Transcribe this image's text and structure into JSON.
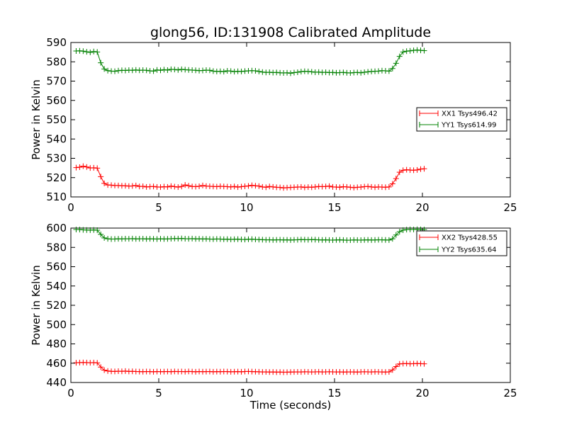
{
  "figure": {
    "title": "glong56, ID:131908 Calibrated Amplitude"
  },
  "colors": {
    "xx": "#ff0000",
    "yy": "#008000",
    "axes": "#000000",
    "background": "#ffffff"
  },
  "chart_data": [
    {
      "type": "line",
      "title": "glong56, ID:131908 Calibrated Amplitude",
      "xlabel": "",
      "ylabel": "Power in Kelvin",
      "xlim": [
        0,
        25
      ],
      "ylim": [
        510,
        590
      ],
      "xticks": [
        0,
        5,
        10,
        15,
        20,
        25
      ],
      "yticks": [
        510,
        520,
        530,
        540,
        550,
        560,
        570,
        580,
        590
      ],
      "grid": false,
      "legend_position": "center-right",
      "marker": "+",
      "x": [
        0.3,
        0.5,
        0.7,
        0.9,
        1.1,
        1.3,
        1.5,
        1.7,
        1.9,
        2.1,
        2.3,
        2.5,
        2.7,
        2.9,
        3.1,
        3.3,
        3.5,
        3.7,
        3.9,
        4.1,
        4.3,
        4.5,
        4.7,
        4.9,
        5.1,
        5.3,
        5.5,
        5.7,
        5.9,
        6.1,
        6.3,
        6.5,
        6.7,
        6.9,
        7.1,
        7.3,
        7.5,
        7.7,
        7.9,
        8.1,
        8.3,
        8.5,
        8.7,
        8.9,
        9.1,
        9.3,
        9.5,
        9.7,
        9.9,
        10.1,
        10.3,
        10.5,
        10.7,
        10.9,
        11.1,
        11.3,
        11.5,
        11.7,
        11.9,
        12.1,
        12.3,
        12.5,
        12.7,
        12.9,
        13.1,
        13.3,
        13.5,
        13.7,
        13.9,
        14.1,
        14.3,
        14.5,
        14.7,
        14.9,
        15.1,
        15.3,
        15.5,
        15.7,
        15.9,
        16.1,
        16.3,
        16.5,
        16.7,
        16.9,
        17.1,
        17.3,
        17.5,
        17.7,
        17.9,
        18.1,
        18.3,
        18.5,
        18.7,
        18.9,
        19.1,
        19.3,
        19.5,
        19.7,
        19.9,
        20.1
      ],
      "series": [
        {
          "name": "XX1 Tsys496.42",
          "color": "#ff0000",
          "values": [
            525.2,
            525.4,
            525.9,
            525.5,
            525.0,
            525.1,
            524.9,
            520.5,
            517.0,
            516.2,
            516.1,
            515.9,
            515.9,
            515.8,
            515.8,
            515.6,
            515.7,
            515.9,
            515.4,
            515.5,
            515.2,
            515.3,
            515.4,
            515.2,
            515.1,
            515.3,
            515.2,
            515.6,
            515.3,
            515.1,
            515.4,
            516.2,
            515.8,
            515.4,
            515.3,
            515.5,
            515.9,
            515.6,
            515.5,
            515.4,
            515.3,
            515.5,
            515.4,
            515.3,
            515.2,
            515.4,
            515.1,
            515.3,
            515.5,
            515.7,
            516.0,
            515.8,
            515.6,
            515.2,
            515.0,
            515.4,
            515.2,
            515.0,
            514.9,
            514.7,
            514.8,
            514.9,
            515.0,
            515.1,
            515.2,
            514.9,
            515.1,
            515.0,
            515.2,
            515.4,
            515.3,
            515.4,
            515.6,
            515.2,
            515.1,
            515.0,
            515.3,
            515.2,
            515.0,
            514.8,
            515.0,
            515.1,
            515.3,
            515.4,
            515.2,
            515.0,
            515.2,
            515.1,
            515.0,
            515.2,
            516.8,
            519.5,
            522.8,
            523.8,
            524.1,
            523.9,
            523.8,
            524.0,
            524.4,
            524.6
          ]
        },
        {
          "name": "YY1 Tsys614.99",
          "color": "#008000",
          "values": [
            585.6,
            585.7,
            585.5,
            585.2,
            584.9,
            585.3,
            585.1,
            579.5,
            576.3,
            575.4,
            575.2,
            575.1,
            575.4,
            575.6,
            575.5,
            575.7,
            575.6,
            575.8,
            575.6,
            575.7,
            575.6,
            575.3,
            575.2,
            575.8,
            575.6,
            575.9,
            575.7,
            576.1,
            576.0,
            575.8,
            576.1,
            575.9,
            575.8,
            575.7,
            575.6,
            575.4,
            575.5,
            575.7,
            575.6,
            575.2,
            575.0,
            575.1,
            574.9,
            575.3,
            575.2,
            574.9,
            575.1,
            575.0,
            575.2,
            575.3,
            575.4,
            575.3,
            575.0,
            574.7,
            574.5,
            574.6,
            574.4,
            574.5,
            574.3,
            574.2,
            574.3,
            574.1,
            574.4,
            574.6,
            574.9,
            575.1,
            575.0,
            574.8,
            574.6,
            574.7,
            574.5,
            574.6,
            574.4,
            574.5,
            574.3,
            574.4,
            574.5,
            574.3,
            574.2,
            574.4,
            574.5,
            574.3,
            574.6,
            574.8,
            575.0,
            575.1,
            575.2,
            575.4,
            575.3,
            575.2,
            576.5,
            579.2,
            582.8,
            585.1,
            585.5,
            585.7,
            585.9,
            586.1,
            585.9,
            585.8
          ]
        }
      ]
    },
    {
      "type": "line",
      "title": "",
      "xlabel": "Time (seconds)",
      "ylabel": "Power in Kelvin",
      "xlim": [
        0,
        25
      ],
      "ylim": [
        440,
        600
      ],
      "xticks": [
        0,
        5,
        10,
        15,
        20,
        25
      ],
      "yticks": [
        440,
        460,
        480,
        500,
        520,
        540,
        560,
        580,
        600
      ],
      "grid": false,
      "legend_position": "top-right",
      "marker": "+",
      "x": [
        0.3,
        0.5,
        0.7,
        0.9,
        1.1,
        1.3,
        1.5,
        1.7,
        1.9,
        2.1,
        2.3,
        2.5,
        2.7,
        2.9,
        3.1,
        3.3,
        3.5,
        3.7,
        3.9,
        4.1,
        4.3,
        4.5,
        4.7,
        4.9,
        5.1,
        5.3,
        5.5,
        5.7,
        5.9,
        6.1,
        6.3,
        6.5,
        6.7,
        6.9,
        7.1,
        7.3,
        7.5,
        7.7,
        7.9,
        8.1,
        8.3,
        8.5,
        8.7,
        8.9,
        9.1,
        9.3,
        9.5,
        9.7,
        9.9,
        10.1,
        10.3,
        10.5,
        10.7,
        10.9,
        11.1,
        11.3,
        11.5,
        11.7,
        11.9,
        12.1,
        12.3,
        12.5,
        12.7,
        12.9,
        13.1,
        13.3,
        13.5,
        13.7,
        13.9,
        14.1,
        14.3,
        14.5,
        14.7,
        14.9,
        15.1,
        15.3,
        15.5,
        15.7,
        15.9,
        16.1,
        16.3,
        16.5,
        16.7,
        16.9,
        17.1,
        17.3,
        17.5,
        17.7,
        17.9,
        18.1,
        18.3,
        18.5,
        18.7,
        18.9,
        19.1,
        19.3,
        19.5,
        19.7,
        19.9,
        20.1
      ],
      "series": [
        {
          "name": "XX2 Tsys428.55",
          "color": "#ff0000",
          "values": [
            460.5,
            460.6,
            460.7,
            460.6,
            460.5,
            460.6,
            460.4,
            456.0,
            452.8,
            451.9,
            451.6,
            451.5,
            451.7,
            451.6,
            451.8,
            451.5,
            451.6,
            451.4,
            451.3,
            451.2,
            451.4,
            451.3,
            451.1,
            451.4,
            451.2,
            451.3,
            451.4,
            451.2,
            451.5,
            451.3,
            451.4,
            451.2,
            451.5,
            451.3,
            451.1,
            451.4,
            451.2,
            451.3,
            451.4,
            451.1,
            451.3,
            451.2,
            451.4,
            451.3,
            451.1,
            451.2,
            451.3,
            451.1,
            451.4,
            451.5,
            451.3,
            451.2,
            451.1,
            450.9,
            451.0,
            450.8,
            450.9,
            450.7,
            450.8,
            450.6,
            450.7,
            450.8,
            450.9,
            451.0,
            450.9,
            451.1,
            451.0,
            450.9,
            451.0,
            451.1,
            450.9,
            451.0,
            451.1,
            451.0,
            450.9,
            451.0,
            450.8,
            450.9,
            451.0,
            450.9,
            450.8,
            451.0,
            451.1,
            451.0,
            450.9,
            451.1,
            451.0,
            450.9,
            450.8,
            451.0,
            453.0,
            456.5,
            459.3,
            459.5,
            459.6,
            459.4,
            459.5,
            459.6,
            459.5,
            459.4
          ]
        },
        {
          "name": "YY2 Tsys635.64",
          "color": "#008000",
          "values": [
            598.5,
            598.4,
            598.2,
            598.0,
            597.9,
            598.1,
            597.8,
            593.5,
            589.8,
            588.9,
            588.6,
            588.7,
            588.9,
            588.8,
            589.0,
            588.9,
            589.1,
            588.8,
            588.9,
            589.0,
            588.7,
            588.9,
            588.8,
            588.6,
            588.9,
            588.7,
            588.8,
            589.0,
            589.2,
            589.1,
            589.3,
            589.0,
            588.9,
            589.1,
            588.8,
            588.9,
            588.7,
            588.8,
            588.6,
            588.5,
            588.7,
            588.6,
            588.4,
            588.5,
            588.3,
            588.4,
            588.5,
            588.3,
            588.2,
            588.4,
            588.5,
            588.3,
            588.1,
            588.0,
            587.8,
            587.9,
            587.7,
            587.8,
            587.9,
            587.7,
            587.8,
            587.6,
            587.8,
            587.9,
            588.1,
            588.0,
            587.9,
            588.1,
            588.0,
            587.8,
            587.7,
            587.8,
            587.6,
            587.5,
            587.7,
            587.8,
            587.6,
            587.4,
            587.5,
            587.7,
            587.6,
            587.5,
            587.7,
            587.8,
            587.6,
            587.7,
            587.9,
            587.8,
            587.7,
            587.6,
            588.9,
            592.8,
            596.2,
            597.9,
            598.4,
            598.6,
            598.5,
            598.7,
            598.6,
            598.4
          ]
        }
      ]
    }
  ]
}
